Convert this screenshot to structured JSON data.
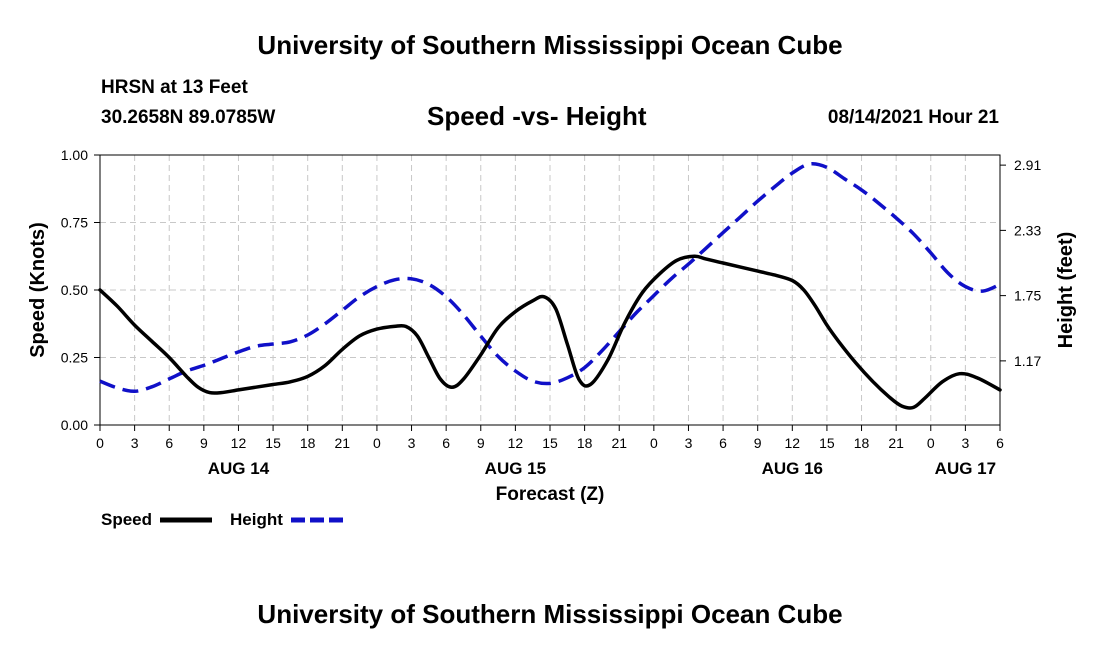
{
  "header": {
    "title": "University of Southern Mississippi Ocean Cube",
    "station": "HRSN at 13 Feet",
    "coords": "30.2658N  89.0785W",
    "chart_title": "Speed -vs- Height",
    "timestamp": "08/14/2021 Hour 21",
    "footer_title": "University of Southern Mississippi Ocean Cube"
  },
  "chart_data": {
    "type": "line",
    "title": "Speed -vs- Height",
    "xlabel": "Forecast (Z)",
    "ylabel": "Speed (Knots)",
    "y2label": "Height (feet)",
    "x_range_hours": [
      0,
      78
    ],
    "ylim": [
      0,
      1.0
    ],
    "y2lim": [
      0.6,
      3.0
    ],
    "yticks": [
      0.0,
      0.25,
      0.5,
      0.75,
      1.0
    ],
    "ytick_labels": [
      "0.00",
      "0.25",
      "0.50",
      "0.75",
      "1.00"
    ],
    "y2ticks": [
      1.17,
      1.75,
      2.33,
      2.91
    ],
    "y2tick_labels": [
      "1.17",
      "1.75",
      "2.33",
      "2.91"
    ],
    "xtick_labels": [
      "0",
      "3",
      "6",
      "9",
      "12",
      "15",
      "18",
      "21",
      "0",
      "3",
      "6",
      "9",
      "12",
      "15",
      "18",
      "21",
      "0",
      "3",
      "6",
      "9",
      "12",
      "15",
      "18",
      "21",
      "0",
      "3",
      "6"
    ],
    "date_labels": [
      {
        "label": "AUG 14",
        "hour": 12
      },
      {
        "label": "AUG 15",
        "hour": 36
      },
      {
        "label": "AUG 16",
        "hour": 60
      },
      {
        "label": "AUG 17",
        "hour": 75
      }
    ],
    "grid": true,
    "legend": [
      {
        "name": "Speed",
        "color": "#000000",
        "style": "solid"
      },
      {
        "name": "Height",
        "color": "#1010c8",
        "style": "dashed"
      }
    ],
    "series": [
      {
        "name": "Speed",
        "axis": "left",
        "color": "#000000",
        "dash": false,
        "x": [
          0,
          1.5,
          3,
          4.5,
          6,
          7.5,
          8.5,
          9.5,
          10.5,
          12,
          13.5,
          15,
          16.5,
          18,
          19.5,
          21,
          22.5,
          24,
          25.5,
          26.5,
          27.5,
          28.5,
          29.5,
          30.5,
          31.5,
          33,
          34.5,
          36,
          37.5,
          38.5,
          39.5,
          40.5,
          41.5,
          42.5,
          44,
          45.5,
          47,
          48.5,
          50,
          51.5,
          52.5,
          54,
          55.5,
          57,
          58.5,
          60,
          61,
          62,
          63,
          64,
          65.5,
          67,
          68.5,
          69.5,
          70.5,
          71.5,
          73,
          74.5,
          76,
          78
        ],
        "values": [
          0.5,
          0.44,
          0.37,
          0.31,
          0.25,
          0.18,
          0.14,
          0.12,
          0.12,
          0.13,
          0.14,
          0.15,
          0.16,
          0.18,
          0.22,
          0.28,
          0.33,
          0.355,
          0.365,
          0.365,
          0.33,
          0.25,
          0.17,
          0.14,
          0.17,
          0.26,
          0.36,
          0.42,
          0.46,
          0.475,
          0.43,
          0.3,
          0.17,
          0.15,
          0.24,
          0.38,
          0.49,
          0.56,
          0.61,
          0.625,
          0.615,
          0.6,
          0.585,
          0.57,
          0.555,
          0.535,
          0.5,
          0.44,
          0.37,
          0.31,
          0.23,
          0.16,
          0.1,
          0.07,
          0.065,
          0.1,
          0.16,
          0.19,
          0.175,
          0.13
        ]
      },
      {
        "name": "Height",
        "axis": "right",
        "color": "#1010c8",
        "dash": true,
        "x": [
          0,
          1.5,
          3,
          4.5,
          6,
          7.5,
          9,
          10.5,
          12,
          13.5,
          15,
          16.5,
          18,
          19.5,
          21,
          22.5,
          24,
          25.5,
          27,
          28.5,
          30,
          31.5,
          33,
          34.5,
          36,
          37.5,
          39,
          40.5,
          42,
          43.5,
          45,
          46.5,
          48,
          49.5,
          51,
          52.5,
          54,
          55.5,
          57,
          58.5,
          60,
          61.5,
          63,
          64.5,
          66,
          67.5,
          69,
          70.5,
          72,
          73.5,
          75,
          76.5,
          78
        ],
        "values": [
          0.99,
          0.93,
          0.9,
          0.94,
          1.01,
          1.08,
          1.13,
          1.19,
          1.25,
          1.3,
          1.32,
          1.34,
          1.4,
          1.5,
          1.62,
          1.74,
          1.83,
          1.89,
          1.9,
          1.85,
          1.74,
          1.58,
          1.39,
          1.21,
          1.08,
          0.99,
          0.97,
          1.02,
          1.11,
          1.26,
          1.43,
          1.6,
          1.75,
          1.9,
          2.03,
          2.17,
          2.31,
          2.45,
          2.59,
          2.72,
          2.84,
          2.92,
          2.89,
          2.79,
          2.69,
          2.57,
          2.44,
          2.3,
          2.13,
          1.95,
          1.83,
          1.79,
          1.85
        ]
      }
    ]
  }
}
